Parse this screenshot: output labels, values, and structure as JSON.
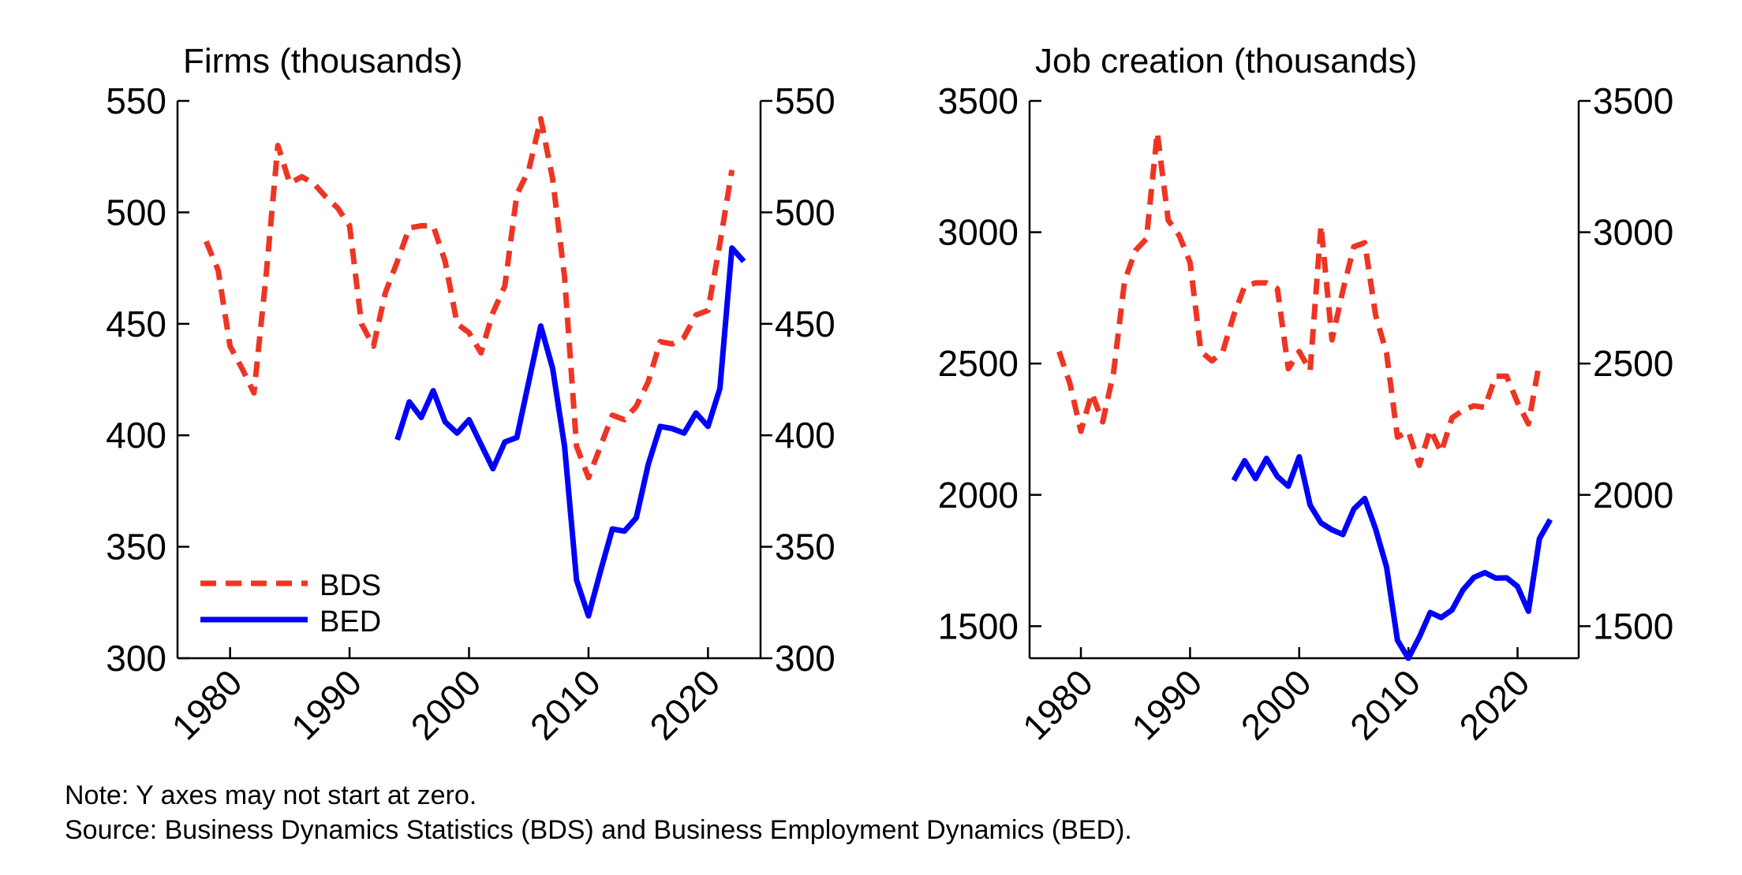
{
  "colors": {
    "BDS": "#ee3524",
    "BED": "#0000ff"
  },
  "chart_data": [
    {
      "type": "line",
      "title": "Firms (thousands)",
      "xlabel": "",
      "ylabel": "Firms (thousands)",
      "xlim": [
        1975.6,
        2024.4
      ],
      "ylim": [
        300,
        550
      ],
      "xticks": [
        1980,
        1990,
        2000,
        2010,
        2020
      ],
      "yticks": [
        300,
        350,
        400,
        450,
        500,
        550
      ],
      "grid": false,
      "legend": {
        "placement": "bottom-left",
        "entries": [
          "BDS",
          "BED"
        ]
      },
      "series": [
        {
          "name": "BDS",
          "style": "dashed",
          "x": [
            1978,
            1979,
            1980,
            1981,
            1982,
            1983,
            1984,
            1985,
            1986,
            1987,
            1988,
            1989,
            1990,
            1991,
            1992,
            1993,
            1994,
            1995,
            1996,
            1997,
            1998,
            1999,
            2000,
            2001,
            2002,
            2003,
            2004,
            2005,
            2006,
            2007,
            2008,
            2009,
            2010,
            2011,
            2012,
            2013,
            2014,
            2015,
            2016,
            2017,
            2018,
            2019,
            2020,
            2021,
            2022
          ],
          "values": [
            487,
            474,
            440,
            430,
            419,
            471,
            530,
            513,
            516,
            513,
            507,
            502,
            494,
            450,
            440,
            464,
            478,
            493,
            494,
            494,
            478,
            450,
            446,
            437,
            455,
            467,
            508,
            519,
            542,
            515,
            471,
            395,
            381,
            395,
            409,
            407,
            413,
            424,
            442,
            441,
            444,
            454,
            456,
            486,
            519
          ]
        },
        {
          "name": "BED",
          "style": "solid",
          "x": [
            1994,
            1995,
            1996,
            1997,
            1998,
            1999,
            2000,
            2001,
            2002,
            2003,
            2004,
            2005,
            2006,
            2007,
            2008,
            2009,
            2010,
            2011,
            2012,
            2013,
            2014,
            2015,
            2016,
            2017,
            2018,
            2019,
            2020,
            2021,
            2022,
            2023
          ],
          "values": [
            398,
            415,
            408,
            420,
            406,
            401,
            407,
            396,
            385,
            397,
            399,
            424,
            449,
            430,
            395,
            335,
            319,
            339,
            358,
            357,
            363,
            387,
            404,
            403,
            401,
            410,
            404,
            421,
            484,
            478
          ]
        }
      ]
    },
    {
      "type": "line",
      "title": "Job creation (thousands)",
      "xlabel": "",
      "ylabel": "Job creation (thousands)",
      "xlim": [
        1975.3,
        2025.6
      ],
      "ylim": [
        1378,
        3500
      ],
      "xticks": [
        1980,
        1990,
        2000,
        2010,
        2020
      ],
      "yticks": [
        1500,
        2000,
        2500,
        3000,
        3500
      ],
      "grid": false,
      "series": [
        {
          "name": "BDS",
          "style": "dashed",
          "x": [
            1978,
            1979,
            1980,
            1981,
            1982,
            1983,
            1984,
            1985,
            1986,
            1987,
            1988,
            1989,
            1990,
            1991,
            1992,
            1993,
            1994,
            1995,
            1996,
            1997,
            1998,
            1999,
            2000,
            2001,
            2002,
            2003,
            2004,
            2005,
            2006,
            2007,
            2008,
            2009,
            2010,
            2011,
            2012,
            2013,
            2014,
            2015,
            2016,
            2017,
            2018,
            2019,
            2020,
            2021,
            2022
          ],
          "values": [
            2546,
            2423,
            2242,
            2387,
            2278,
            2467,
            2814,
            2930,
            2975,
            3380,
            3046,
            2988,
            2885,
            2546,
            2510,
            2546,
            2684,
            2794,
            2807,
            2807,
            2785,
            2480,
            2546,
            2473,
            3026,
            2590,
            2778,
            2945,
            2960,
            2684,
            2539,
            2220,
            2242,
            2112,
            2249,
            2162,
            2293,
            2322,
            2339,
            2333,
            2452,
            2452,
            2351,
            2270,
            2504
          ]
        },
        {
          "name": "BED",
          "style": "solid",
          "x": [
            1994,
            1995,
            1996,
            1997,
            1998,
            1999,
            2000,
            2001,
            2002,
            2003,
            2004,
            2005,
            2006,
            2007,
            2008,
            2009,
            2010,
            2011,
            2012,
            2013,
            2014,
            2015,
            2016,
            2017,
            2018,
            2019,
            2020,
            2021,
            2022,
            2023
          ],
          "values": [
            2055,
            2130,
            2062,
            2139,
            2070,
            2033,
            2145,
            1961,
            1893,
            1867,
            1849,
            1946,
            1986,
            1870,
            1725,
            1446,
            1378,
            1458,
            1552,
            1533,
            1562,
            1638,
            1686,
            1704,
            1683,
            1684,
            1651,
            1557,
            1833,
            1906
          ]
        }
      ]
    }
  ],
  "notes": {
    "note": "Note: Y axes may not start at zero.",
    "source": "Source: Business Dynamics Statistics (BDS) and Business Employment Dynamics (BED)."
  }
}
